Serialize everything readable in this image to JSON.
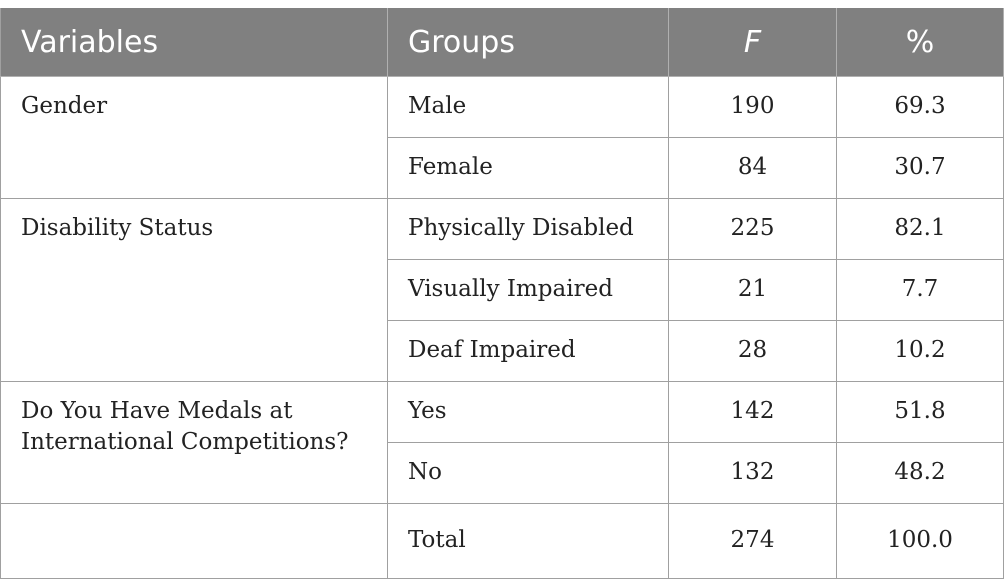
{
  "header": {
    "variables": "Variables",
    "groups": "Groups",
    "f": "F",
    "percent": "%"
  },
  "sections": [
    {
      "variable": "Gender",
      "rows": [
        {
          "group": "Male",
          "f": "190",
          "pct": "69.3"
        },
        {
          "group": "Female",
          "f": "84",
          "pct": "30.7"
        }
      ]
    },
    {
      "variable": "Disability Status",
      "rows": [
        {
          "group": "Physically Disabled",
          "f": "225",
          "pct": "82.1"
        },
        {
          "group": "Visually Impaired",
          "f": "21",
          "pct": "7.7"
        },
        {
          "group": "Deaf Impaired",
          "f": "28",
          "pct": "10.2"
        }
      ]
    },
    {
      "variable": "Do You Have Medals at International Competitions?",
      "rows": [
        {
          "group": "Yes",
          "f": "142",
          "pct": "51.8"
        },
        {
          "group": "No",
          "f": "132",
          "pct": "48.2"
        }
      ]
    },
    {
      "variable": "",
      "rows": [
        {
          "group": "Total",
          "f": "274",
          "pct": "100.0"
        }
      ]
    }
  ]
}
